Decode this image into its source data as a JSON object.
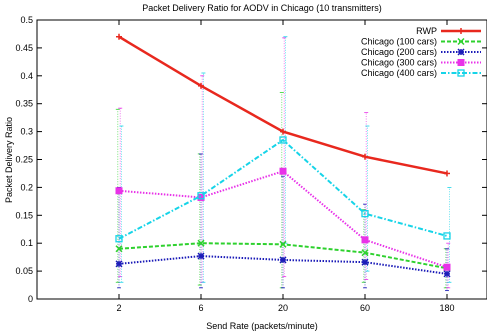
{
  "chart_data": {
    "type": "line",
    "title": "Packet Delivery Ratio for AODV in Chicago (10 transmitters)",
    "xlabel": "Send Rate (packets/minute)",
    "ylabel": "Packet Delivery Ratio",
    "x_scale": "categorical",
    "categories": [
      "2",
      "6",
      "20",
      "60",
      "180"
    ],
    "ylim": [
      0,
      0.5
    ],
    "yticks": [
      "0",
      "0.05",
      "0.1",
      "0.15",
      "0.2",
      "0.25",
      "0.3",
      "0.35",
      "0.4",
      "0.45",
      "0.5"
    ],
    "grid": false,
    "legend_position": "top-right",
    "series": [
      {
        "name": "RWP",
        "color": "#e8281e",
        "marker": "plus",
        "dash": "solid",
        "values": [
          0.47,
          0.382,
          0.3,
          0.255,
          0.225
        ],
        "err_low": null,
        "err_high": null
      },
      {
        "name": "Chicago (100 cars)",
        "color": "#2ed12e",
        "marker": "x",
        "dash": "dash",
        "values": [
          0.09,
          0.1,
          0.098,
          0.083,
          0.055
        ],
        "err_low": [
          0.03,
          0.025,
          0.02,
          0.03,
          0.02
        ],
        "err_high": [
          0.34,
          0.26,
          0.37,
          0.16,
          0.09
        ]
      },
      {
        "name": "Chicago (200 cars)",
        "color": "#1c1cb8",
        "marker": "asterisk",
        "dash": "dot",
        "values": [
          0.063,
          0.077,
          0.07,
          0.066,
          0.045
        ],
        "err_low": [
          0.02,
          0.02,
          0.02,
          0.02,
          0.015
        ],
        "err_high": [
          0.2,
          0.26,
          0.22,
          0.17,
          0.09
        ]
      },
      {
        "name": "Chicago (300 cars)",
        "color": "#e832e8",
        "marker": "square",
        "dash": "dot",
        "values": [
          0.194,
          0.182,
          0.229,
          0.106,
          0.057
        ],
        "err_low": [
          0.04,
          0.03,
          0.04,
          0.035,
          0.02
        ],
        "err_high": [
          0.342,
          0.4,
          0.468,
          0.334,
          0.1
        ]
      },
      {
        "name": "Chicago (400 cars)",
        "color": "#16d4e8",
        "marker": "square-outline",
        "dash": "dashdot",
        "values": [
          0.108,
          0.185,
          0.285,
          0.153,
          0.113
        ],
        "err_low": [
          0.03,
          0.03,
          0.1,
          0.05,
          0.03
        ],
        "err_high": [
          0.31,
          0.405,
          0.47,
          0.31,
          0.2
        ]
      }
    ]
  }
}
